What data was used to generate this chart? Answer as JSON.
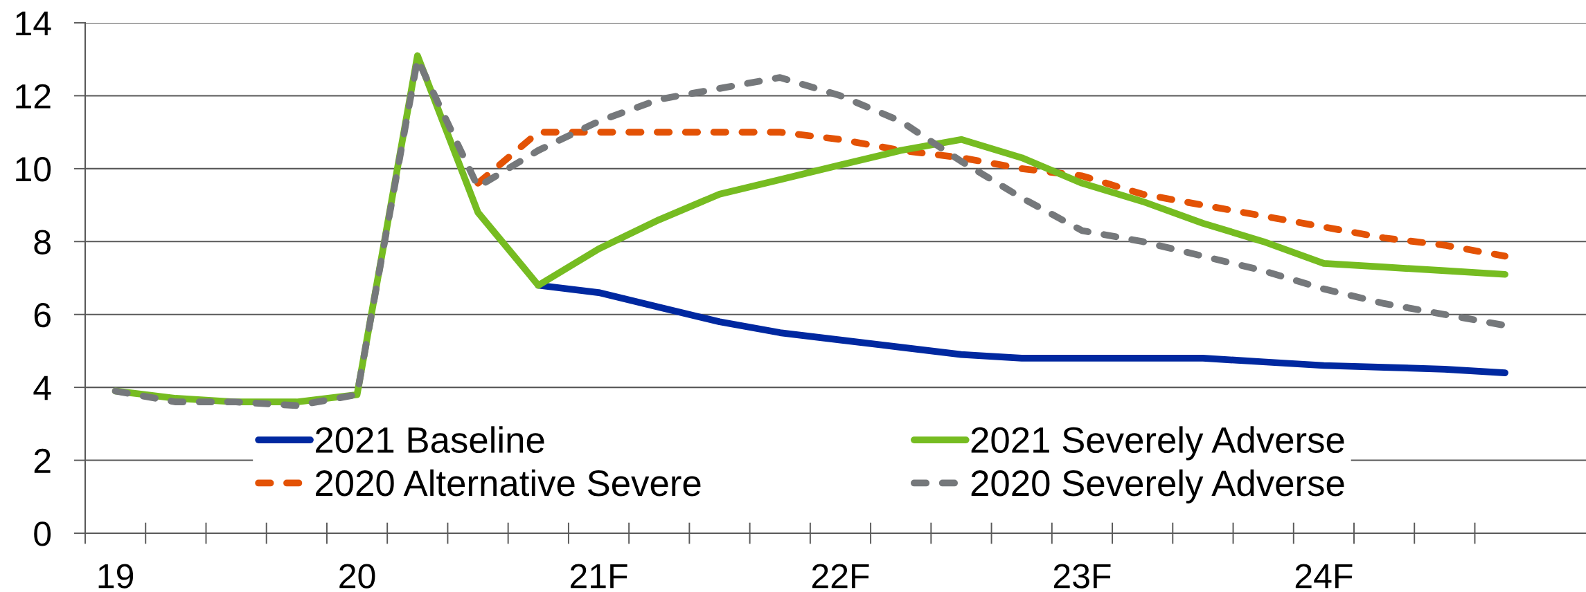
{
  "chart_data": {
    "type": "line",
    "categories": [
      "19",
      null,
      null,
      null,
      "20",
      null,
      null,
      null,
      "21F",
      null,
      null,
      null,
      "22F",
      null,
      null,
      null,
      "23F",
      null,
      null,
      null,
      "24F",
      null,
      null,
      null
    ],
    "series": [
      {
        "name": "2021 Baseline",
        "color": "#0028a0",
        "line_style": "solid",
        "values": [
          null,
          null,
          null,
          null,
          null,
          null,
          null,
          6.8,
          6.6,
          6.2,
          5.8,
          5.5,
          5.3,
          5.1,
          4.9,
          4.8,
          4.8,
          4.8,
          4.8,
          4.7,
          4.6,
          4.55,
          4.5,
          4.4
        ]
      },
      {
        "name": "2020 Alternative Severe",
        "color": "#e35205",
        "line_style": "dashed",
        "values": [
          null,
          null,
          null,
          null,
          null,
          null,
          9.6,
          11.0,
          11.0,
          11.0,
          11.0,
          11.0,
          10.8,
          10.5,
          10.3,
          10.0,
          9.8,
          9.3,
          9.0,
          8.7,
          8.4,
          8.1,
          7.9,
          7.6
        ]
      },
      {
        "name": "2021 Severely Adverse",
        "color": "#76bc21",
        "line_style": "solid",
        "values": [
          3.9,
          3.7,
          3.6,
          3.6,
          3.8,
          13.1,
          8.8,
          6.8,
          7.8,
          8.6,
          9.3,
          9.7,
          10.1,
          10.5,
          10.8,
          10.3,
          9.6,
          9.1,
          8.5,
          8.0,
          7.4,
          7.3,
          7.2,
          7.1
        ]
      },
      {
        "name": "2020 Severely Adverse",
        "color": "#75787b",
        "line_style": "dashed",
        "values": [
          3.9,
          3.6,
          3.6,
          3.5,
          3.8,
          13.0,
          9.5,
          10.5,
          11.3,
          11.9,
          12.2,
          12.5,
          12.0,
          11.3,
          10.2,
          9.2,
          8.3,
          8.0,
          7.6,
          7.2,
          6.7,
          6.3,
          6.0,
          5.7
        ]
      }
    ],
    "ylim": [
      0,
      14
    ],
    "yticks": [
      0,
      2,
      4,
      6,
      8,
      10,
      12,
      14
    ],
    "grid": "y",
    "legend": "bottom"
  }
}
